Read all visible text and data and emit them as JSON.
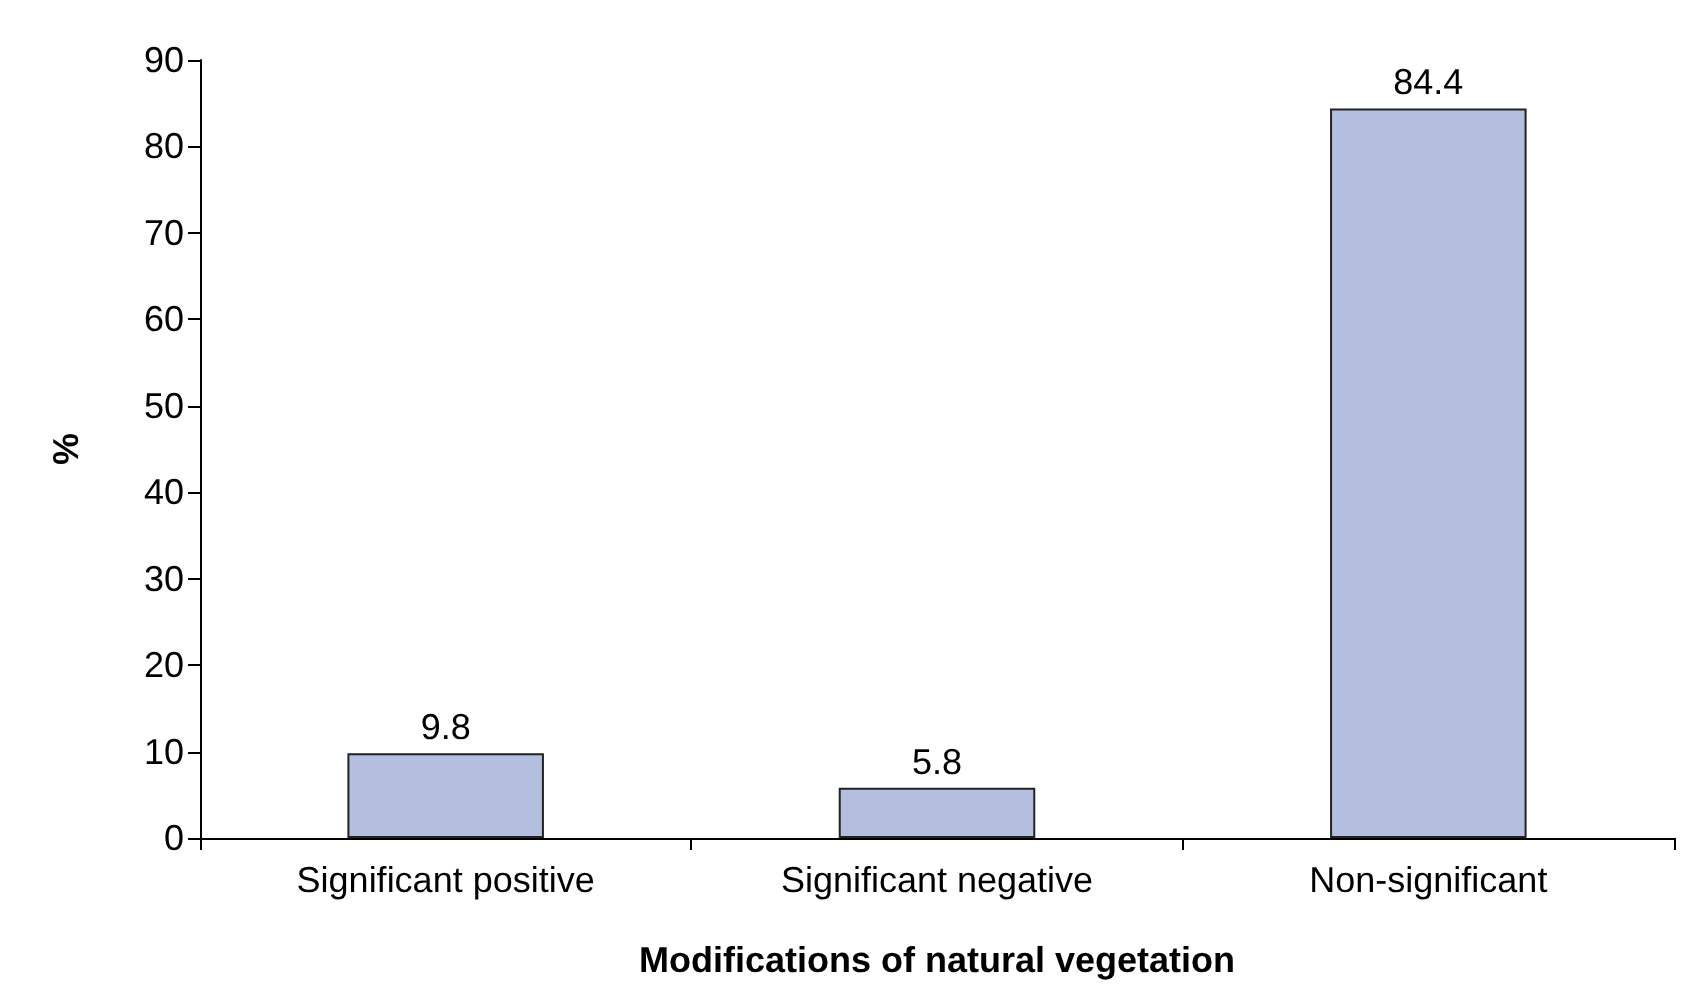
{
  "chart_data": {
    "type": "bar",
    "xlabel": "Modifications of natural vegetation",
    "ylabel": "%",
    "categories": [
      "Significant positive",
      "Significant negative",
      "Non-significant"
    ],
    "values": [
      9.8,
      5.8,
      84.4
    ],
    "color": "#b4bfe0",
    "ylim": [
      0,
      90
    ],
    "yticks": [
      0,
      10,
      20,
      30,
      40,
      50,
      60,
      70,
      80,
      90
    ],
    "grid": false,
    "data_labels": true
  }
}
